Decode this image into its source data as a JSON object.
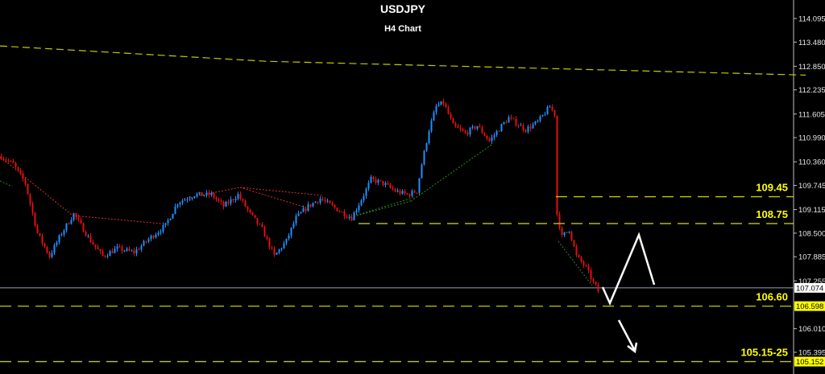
{
  "chart_data": {
    "type": "candlestick",
    "title": "USDJPY",
    "subtitle": "H4 Chart",
    "ylim": [
      104.95,
      114.55
    ],
    "y_ticks": [
      "114.095",
      "113.480",
      "112.850",
      "112.235",
      "111.605",
      "110.990",
      "110.360",
      "109.745",
      "109.115",
      "108.500",
      "107.885",
      "107.255",
      "106.010",
      "105.395"
    ],
    "grid": false,
    "colors": {
      "up": "#1e90ff",
      "down": "#e01010",
      "level": "#c8c800",
      "level_text": "#ffff00",
      "ma": "#c8c800",
      "current": "#8fa3b8",
      "projection": "#ffffff"
    },
    "price_path": [
      [
        0,
        110.5
      ],
      [
        5,
        110.3
      ],
      [
        10,
        109.8
      ],
      [
        15,
        108.5
      ],
      [
        20,
        107.9
      ],
      [
        25,
        108.5
      ],
      [
        30,
        109.0
      ],
      [
        37,
        108.3
      ],
      [
        42,
        107.9
      ],
      [
        48,
        108.1
      ],
      [
        55,
        108.0
      ],
      [
        62,
        108.4
      ],
      [
        68,
        108.7
      ],
      [
        73,
        109.3
      ],
      [
        80,
        109.5
      ],
      [
        87,
        109.5
      ],
      [
        92,
        109.2
      ],
      [
        98,
        109.5
      ],
      [
        103,
        109.0
      ],
      [
        108,
        108.6
      ],
      [
        113,
        107.9
      ],
      [
        118,
        108.3
      ],
      [
        122,
        108.9
      ],
      [
        127,
        109.2
      ],
      [
        132,
        109.4
      ],
      [
        137,
        109.2
      ],
      [
        142,
        109.0
      ],
      [
        145,
        108.9
      ],
      [
        150,
        109.5
      ],
      [
        153,
        109.9
      ],
      [
        158,
        109.8
      ],
      [
        163,
        109.6
      ],
      [
        168,
        109.5
      ],
      [
        172,
        109.6
      ],
      [
        174,
        110.3
      ],
      [
        177,
        111.2
      ],
      [
        180,
        111.8
      ],
      [
        183,
        111.9
      ],
      [
        187,
        111.3
      ],
      [
        192,
        111.1
      ],
      [
        197,
        111.3
      ],
      [
        202,
        110.9
      ],
      [
        207,
        111.3
      ],
      [
        210,
        111.5
      ],
      [
        217,
        111.2
      ],
      [
        222,
        111.4
      ],
      [
        227,
        111.8
      ],
      [
        229,
        111.6
      ],
      [
        230,
        109.0
      ],
      [
        232,
        108.4
      ],
      [
        235,
        108.6
      ],
      [
        238,
        107.9
      ],
      [
        242,
        107.6
      ],
      [
        245,
        107.2
      ],
      [
        247,
        107.0
      ]
    ],
    "moving_average": [
      [
        0,
        113.38
      ],
      [
        330,
        112.98
      ],
      [
        1000,
        112.62
      ]
    ],
    "levels": [
      {
        "label": "109.45",
        "price": 109.45,
        "axis_tag": ""
      },
      {
        "label": "108.75",
        "price": 108.75,
        "axis_tag": ""
      },
      {
        "label": "106.60",
        "price": 106.598,
        "axis_tag": "106.598"
      },
      {
        "label": "105.15-25",
        "price": 105.152,
        "axis_tag": "105.152"
      }
    ],
    "current_price": "107.074"
  }
}
